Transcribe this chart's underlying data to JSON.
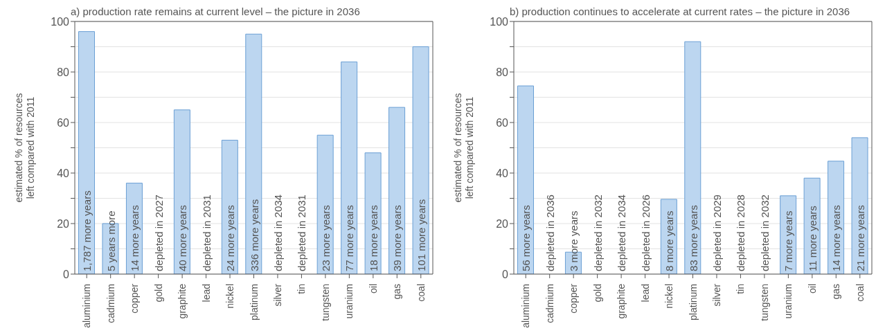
{
  "chart_data": [
    {
      "type": "bar",
      "title": "a) production rate remains at current level – the picture in 2036",
      "ylabel": "estimated % of resources left compared with 2011",
      "categories": [
        "aluminium",
        "cadmium",
        "copper",
        "gold",
        "graphite",
        "lead",
        "nickel",
        "platinum",
        "silver",
        "tin",
        "tungsten",
        "uranium",
        "oil",
        "gas",
        "coal"
      ],
      "values": [
        96,
        20,
        36,
        0,
        65,
        0,
        53,
        95,
        0,
        0,
        55,
        84,
        48,
        66,
        90
      ],
      "annotations": [
        "1,787 more years",
        "5 years more",
        "14 more years",
        "depleted in 2027",
        "40 more years",
        "depleted in 2031",
        "24 more years",
        "336 more years",
        "depleted in 2034",
        "depleted in 2031",
        "23 more years",
        "77 more years",
        "18 more years",
        "39 more years",
        "101 more years"
      ],
      "color": "#bcd6f0",
      "ylim": [
        0,
        100
      ],
      "yticks": [
        0,
        {
          "value": 10,
          "label": null
        },
        20,
        {
          "value": 30,
          "label": null
        },
        40,
        {
          "value": 50,
          "label": null
        },
        60,
        {
          "value": 70,
          "label": null
        },
        80,
        {
          "value": 90,
          "label": null
        },
        100
      ],
      "grid": "y"
    },
    {
      "type": "bar",
      "title": "b) production continues to accelerate at current rates – the picture in 2036",
      "ylabel": "estimated % of resources left compared with 2011",
      "categories": [
        "aluminium",
        "cadmium",
        "copper",
        "gold",
        "graphite",
        "lead",
        "nickel",
        "platinum",
        "silver",
        "tin",
        "tungsten",
        "uranium",
        "oil",
        "gas",
        "coal"
      ],
      "values": [
        74.5,
        0,
        8.7,
        0,
        0,
        0,
        29.6,
        92,
        0,
        0,
        0,
        31,
        38,
        44.7,
        54
      ],
      "annotations": [
        "56 more years",
        "depleted in 2036",
        "3 more years",
        "depleted in 2032",
        "depleted in 2034",
        "depleted in 2026",
        "8 more years",
        "83 more years",
        "depleted in 2029",
        "depleted in 2028",
        "depleted in 2032",
        "7 more years",
        "11 more years",
        "14 more years",
        "21 more years"
      ],
      "color": "#bcd6f0",
      "ylim": [
        0,
        100
      ],
      "yticks": [
        0,
        {
          "value": 10,
          "label": null
        },
        20,
        {
          "value": 30,
          "label": null
        },
        40,
        {
          "value": 50,
          "label": null
        },
        60,
        {
          "value": 70,
          "label": null
        },
        80,
        {
          "value": 90,
          "label": null
        },
        100
      ],
      "grid": "y"
    }
  ]
}
